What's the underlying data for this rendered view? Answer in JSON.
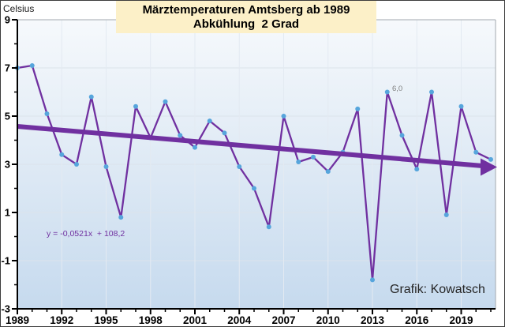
{
  "credit": "Grafik: Kowatsch",
  "chart_data": {
    "type": "line",
    "title": "Märztemperaturen Amtsberg ab 1989",
    "subtitle": "Abkühlung  2 Grad",
    "ylabel": "Celsius",
    "x": [
      1989,
      1990,
      1991,
      1992,
      1993,
      1994,
      1995,
      1996,
      1997,
      1998,
      1999,
      2000,
      2001,
      2002,
      2003,
      2004,
      2005,
      2006,
      2007,
      2008,
      2009,
      2010,
      2011,
      2012,
      2013,
      2014,
      2015,
      2016,
      2017,
      2018,
      2019,
      2020,
      2021
    ],
    "values": [
      7.0,
      7.1,
      5.1,
      3.4,
      3.0,
      5.8,
      2.9,
      0.8,
      5.4,
      4.1,
      5.6,
      4.2,
      3.7,
      4.8,
      4.3,
      2.9,
      2.0,
      0.4,
      5.0,
      3.1,
      3.3,
      2.7,
      3.5,
      5.3,
      -1.8,
      6.0,
      4.2,
      2.8,
      6.0,
      0.9,
      5.4,
      3.5,
      3.2
    ],
    "ylim": [
      -3,
      9
    ],
    "xlim": [
      1989,
      2021.4
    ],
    "yticks": [
      9,
      7,
      5,
      3,
      1,
      -1,
      -3
    ],
    "yticks_minor": [
      8,
      6,
      4,
      2,
      0,
      -2
    ],
    "xticks": [
      1989,
      1992,
      1995,
      1998,
      2001,
      2004,
      2007,
      2010,
      2013,
      2016,
      2019
    ],
    "grid": true,
    "legend": "none",
    "trend": {
      "slope": -0.0521,
      "intercept": 108.2,
      "equation_label": "y = -0,0521x  + 108,2"
    },
    "point_labels": [
      {
        "x": 2014,
        "y": 6.0,
        "text": "6,0"
      }
    ],
    "colors": {
      "line": "#7030A0",
      "marker": "#56A5DC",
      "trend": "#7030A0",
      "title_bg": "#FCF0C8",
      "grid_h": "#DCE3EB",
      "grid_v": "#E3EAF2",
      "plot_border": "#A3A9AF",
      "axis": "#000000",
      "bg_top": "#F6F9FC",
      "bg_mid": "#DCE8F4",
      "bg_bottom": "#C6DAEE"
    }
  }
}
